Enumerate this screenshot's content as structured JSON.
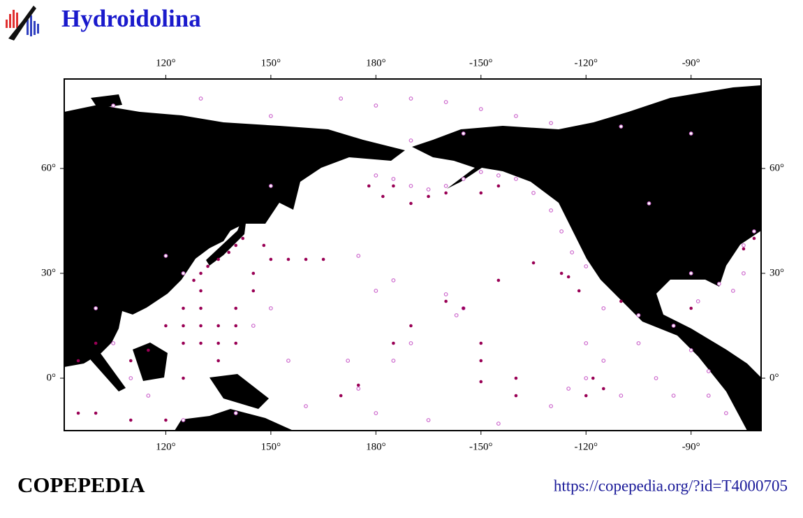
{
  "header": {
    "title": "Hydroidolina"
  },
  "map": {
    "xlim": [
      91,
      -70
    ],
    "ylim": [
      -15,
      85.6
    ],
    "xticks": [
      {
        "value": 120,
        "label": "120°"
      },
      {
        "value": 150,
        "label": "150°"
      },
      {
        "value": 180,
        "label": "180°"
      },
      {
        "value": -150,
        "label": "-150°"
      },
      {
        "value": -120,
        "label": "-120°"
      },
      {
        "value": -90,
        "label": "-90°"
      }
    ],
    "yticks": [
      {
        "value": 60,
        "label": "60°"
      },
      {
        "value": 30,
        "label": "30°"
      },
      {
        "value": 0,
        "label": "0°"
      }
    ],
    "series": [
      {
        "color": "#cc66cc",
        "points": [
          [
            180,
            58
          ],
          [
            -175,
            57
          ],
          [
            -170,
            55
          ],
          [
            -165,
            54
          ],
          [
            -160,
            55
          ],
          [
            -155,
            57
          ],
          [
            -150,
            59
          ],
          [
            -145,
            58
          ],
          [
            -140,
            57
          ],
          [
            -135,
            53
          ],
          [
            -130,
            48
          ],
          [
            -127,
            42
          ],
          [
            -124,
            36
          ],
          [
            -120,
            32
          ],
          [
            170,
            80
          ],
          [
            180,
            78
          ],
          [
            -170,
            80
          ],
          [
            -160,
            79
          ],
          [
            -150,
            77
          ],
          [
            -140,
            75
          ],
          [
            -130,
            73
          ],
          [
            -110,
            72
          ],
          [
            -90,
            70
          ],
          [
            105,
            78
          ],
          [
            130,
            80
          ],
          [
            150,
            75
          ],
          [
            175,
            35
          ],
          [
            180,
            25
          ],
          [
            -175,
            28
          ],
          [
            -160,
            24
          ],
          [
            -155,
            20
          ],
          [
            -157,
            18
          ],
          [
            -170,
            10
          ],
          [
            -175,
            5
          ],
          [
            175,
            -3
          ],
          [
            172,
            5
          ],
          [
            180,
            -10
          ],
          [
            -120,
            10
          ],
          [
            -120,
            0
          ],
          [
            -115,
            5
          ],
          [
            -110,
            -5
          ],
          [
            -105,
            10
          ],
          [
            -100,
            0
          ],
          [
            -95,
            -5
          ],
          [
            -90,
            8
          ],
          [
            -85,
            2
          ],
          [
            -80,
            -10
          ],
          [
            -75,
            30
          ],
          [
            -78,
            25
          ],
          [
            -82,
            27
          ],
          [
            -88,
            22
          ],
          [
            -90,
            30
          ],
          [
            -75,
            38
          ],
          [
            -72,
            42
          ],
          [
            100,
            20
          ],
          [
            105,
            10
          ],
          [
            110,
            0
          ],
          [
            115,
            -5
          ],
          [
            125,
            -12
          ],
          [
            140,
            -10
          ],
          [
            145,
            15
          ],
          [
            150,
            20
          ],
          [
            155,
            5
          ],
          [
            160,
            -8
          ],
          [
            -165,
            -12
          ],
          [
            -145,
            -13
          ],
          [
            -130,
            -8
          ],
          [
            -125,
            -3
          ],
          [
            -115,
            20
          ],
          [
            -105,
            18
          ],
          [
            -95,
            15
          ],
          [
            -85,
            -5
          ],
          [
            -102,
            50
          ],
          [
            -170,
            68
          ],
          [
            -155,
            70
          ],
          [
            120,
            35
          ],
          [
            125,
            30
          ],
          [
            150,
            55
          ]
        ]
      },
      {
        "color": "#990055",
        "points": [
          [
            130,
            30
          ],
          [
            132,
            32
          ],
          [
            135,
            34
          ],
          [
            138,
            36
          ],
          [
            140,
            38
          ],
          [
            142,
            40
          ],
          [
            128,
            28
          ],
          [
            130,
            25
          ],
          [
            130,
            20
          ],
          [
            130,
            15
          ],
          [
            130,
            10
          ],
          [
            135,
            15
          ],
          [
            135,
            10
          ],
          [
            135,
            5
          ],
          [
            140,
            20
          ],
          [
            140,
            15
          ],
          [
            140,
            10
          ],
          [
            145,
            30
          ],
          [
            145,
            25
          ],
          [
            148,
            38
          ],
          [
            150,
            34
          ],
          [
            155,
            34
          ],
          [
            160,
            34
          ],
          [
            165,
            34
          ],
          [
            125,
            20
          ],
          [
            125,
            15
          ],
          [
            125,
            10
          ],
          [
            120,
            15
          ],
          [
            115,
            8
          ],
          [
            110,
            5
          ],
          [
            100,
            10
          ],
          [
            95,
            5
          ],
          [
            95,
            -10
          ],
          [
            100,
            -10
          ],
          [
            110,
            -12
          ],
          [
            120,
            -12
          ],
          [
            125,
            0
          ],
          [
            178,
            55
          ],
          [
            -178,
            52
          ],
          [
            -175,
            55
          ],
          [
            -170,
            50
          ],
          [
            -165,
            52
          ],
          [
            -160,
            53
          ],
          [
            -150,
            53
          ],
          [
            -145,
            55
          ],
          [
            -150,
            -1
          ],
          [
            -150,
            5
          ],
          [
            -150,
            10
          ],
          [
            -140,
            0
          ],
          [
            -140,
            -5
          ],
          [
            -120,
            -5
          ],
          [
            -118,
            0
          ],
          [
            -115,
            -3
          ],
          [
            -122,
            25
          ],
          [
            -125,
            29
          ],
          [
            -127,
            30
          ],
          [
            -110,
            22
          ],
          [
            -90,
            20
          ],
          [
            -75,
            37
          ],
          [
            -72,
            40
          ],
          [
            170,
            -5
          ],
          [
            175,
            -2
          ],
          [
            -175,
            10
          ],
          [
            -170,
            15
          ],
          [
            -160,
            22
          ],
          [
            -155,
            20
          ],
          [
            -145,
            28
          ],
          [
            -135,
            33
          ]
        ]
      }
    ]
  },
  "footer": {
    "brand": "COPEPEDIA",
    "url": "https://copepedia.org/?id=T4000705"
  }
}
